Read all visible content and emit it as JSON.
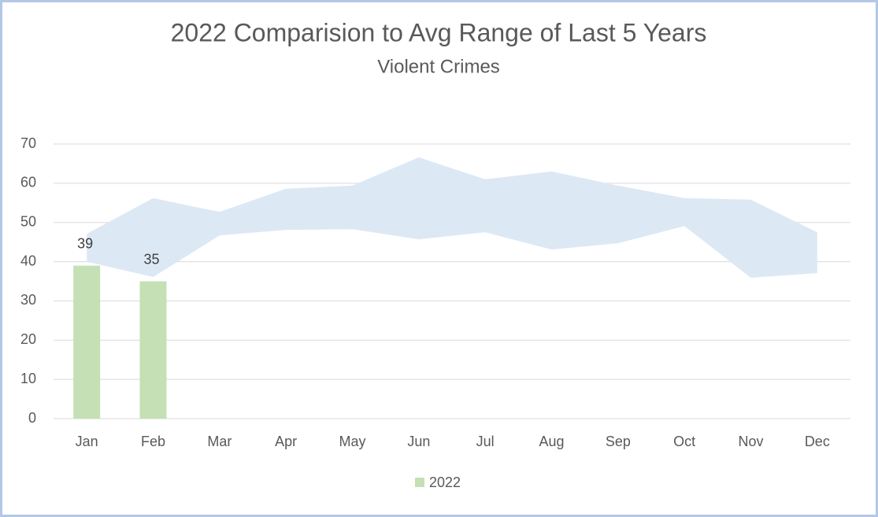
{
  "chart_data": {
    "type": "bar",
    "title": "2022 Comparision to Avg Range of Last 5 Years",
    "subtitle": "Violent Crimes",
    "categories": [
      "Jan",
      "Feb",
      "Mar",
      "Apr",
      "May",
      "Jun",
      "Jul",
      "Aug",
      "Sep",
      "Oct",
      "Nov",
      "Dec"
    ],
    "series": [
      {
        "name": "2022",
        "color": "#c5e0b4",
        "values": [
          39,
          35,
          null,
          null,
          null,
          null,
          null,
          null,
          null,
          null,
          null,
          null
        ]
      }
    ],
    "range": {
      "color": "#dde8f5",
      "low": [
        40,
        36.1,
        46.7,
        48.1,
        48.3,
        45.7,
        47.5,
        43.1,
        44.7,
        49.1,
        35.9,
        37.1
      ],
      "high": [
        47.1,
        56.2,
        52.7,
        58.6,
        59.4,
        66.6,
        61,
        63,
        59.4,
        56.2,
        55.8,
        47.5
      ]
    },
    "ylim": [
      0,
      70
    ],
    "yticks": [
      0,
      10,
      20,
      30,
      40,
      50,
      60,
      70
    ],
    "grid": true,
    "legend": "bottom"
  }
}
